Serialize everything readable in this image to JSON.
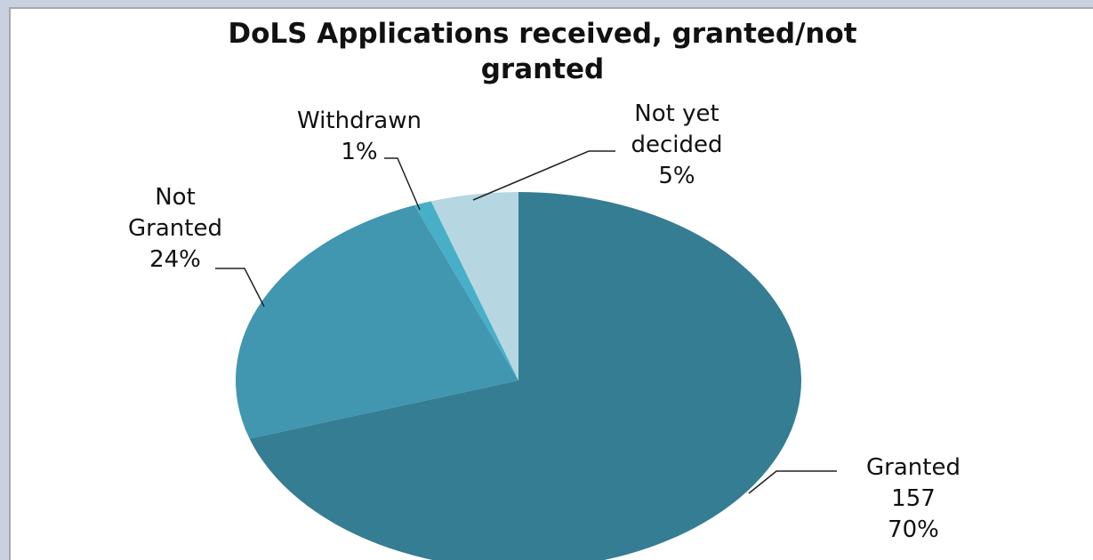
{
  "chart_data": {
    "type": "pie",
    "title": "DoLS Applications  received, granted/not granted",
    "title_lines": [
      "DoLS Applications  received, granted/not",
      "granted"
    ],
    "slices": [
      {
        "name": "Granted",
        "label_lines": [
          "Granted",
          "157",
          "70%"
        ],
        "value": 157,
        "percent": 70,
        "color": "#357d93"
      },
      {
        "name": "Not Granted",
        "label_lines": [
          "Not",
          "Granted",
          "24%"
        ],
        "percent": 24,
        "color": "#4196b0"
      },
      {
        "name": "Withdrawn",
        "label_lines": [
          "Withdrawn",
          "1%"
        ],
        "percent": 1,
        "color": "#47afc8"
      },
      {
        "name": "Not yet decided",
        "label_lines": [
          "Not yet",
          "decided",
          "5%"
        ],
        "percent": 5,
        "color": "#b6d6e2"
      }
    ],
    "start_angle_deg": 0,
    "direction": "clockwise",
    "legend": "none"
  }
}
